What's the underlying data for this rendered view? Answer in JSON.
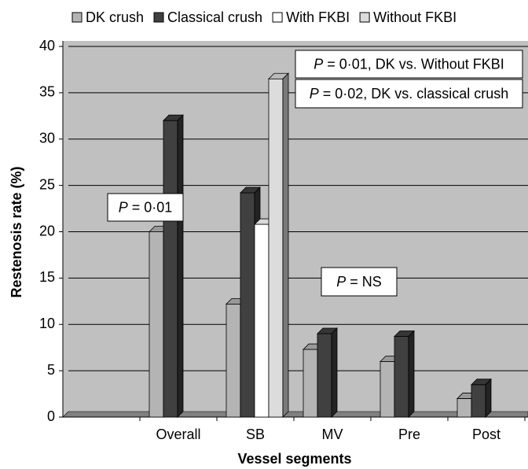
{
  "chart_data": {
    "type": "bar3d",
    "y_label": "Restenosis rate (%)",
    "x_label": "Vessel segments",
    "categories": [
      null,
      "Overall",
      "SB",
      "MV",
      "Pre",
      "Post"
    ],
    "series": [
      {
        "name": "DK crush",
        "color": "#b4b4b4",
        "values": [
          null,
          20,
          12.2,
          7.3,
          6,
          2
        ]
      },
      {
        "name": "Classical crush",
        "color": "#404040",
        "values": [
          null,
          32,
          24.2,
          9,
          8.7,
          3.5
        ]
      },
      {
        "name": "With FKBI",
        "color": "#ffffff",
        "values": [
          null,
          null,
          20.8,
          null,
          null,
          null
        ]
      },
      {
        "name": "Without FKBI",
        "color": "#dcdcdc",
        "values": [
          null,
          null,
          36.5,
          null,
          null,
          null
        ]
      }
    ],
    "ylim": [
      0,
      40
    ],
    "yticks": [
      0,
      5,
      10,
      15,
      20,
      25,
      30,
      35,
      40
    ],
    "grid": true,
    "annotations": [
      {
        "symbol": "P",
        "text": "= 0·01, DK vs. Without FKBI"
      },
      {
        "symbol": "P",
        "text": "= 0·02, DK vs. classical crush"
      },
      {
        "symbol": "P",
        "text": "= 0·01"
      },
      {
        "symbol": "P",
        "text": "= NS"
      }
    ]
  }
}
